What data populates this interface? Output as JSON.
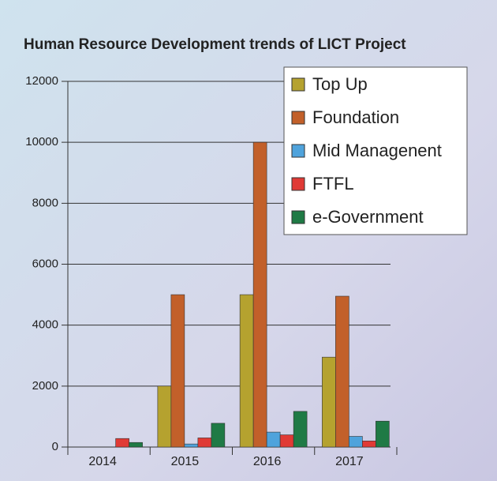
{
  "chart_data": {
    "type": "bar",
    "title": "Human Resource Development  trends of LICT Project",
    "categories": [
      "2014",
      "2015",
      "2016",
      "2017"
    ],
    "series": [
      {
        "name": "Top Up",
        "color": "#b5a22f",
        "values": [
          0,
          2000,
          5000,
          2950
        ]
      },
      {
        "name": "Foundation",
        "color": "#c2602a",
        "values": [
          0,
          5000,
          10000,
          4950
        ]
      },
      {
        "name": "Mid Managenent",
        "color": "#4fa3dc",
        "values": [
          0,
          100,
          490,
          350
        ]
      },
      {
        "name": "FTFL",
        "color": "#e03a35",
        "values": [
          280,
          300,
          400,
          200
        ]
      },
      {
        "name": "e-Government",
        "color": "#1f7a45",
        "values": [
          150,
          780,
          1170,
          850
        ]
      }
    ],
    "ylim": [
      0,
      12000
    ],
    "yticks": [
      0,
      2000,
      4000,
      6000,
      8000,
      10000,
      12000
    ],
    "grid": true,
    "legend": "top-right"
  }
}
